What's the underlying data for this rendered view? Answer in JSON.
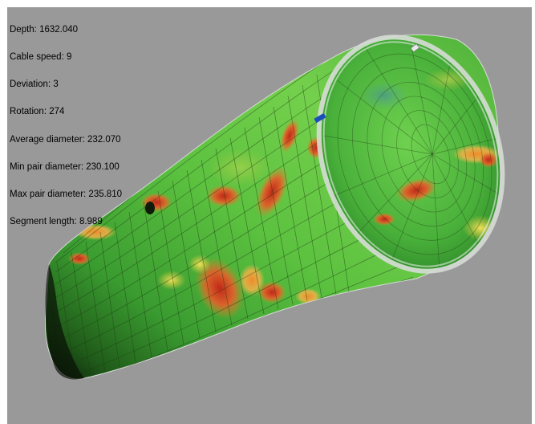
{
  "readout": {
    "depth": "Depth: 1632.040",
    "cable_speed": "Cable speed: 9",
    "deviation": "Deviation: 3",
    "rotation": "Rotation: 274",
    "average_diameter": "Average diameter: 232.070",
    "min_pair_diameter": "Min pair diameter: 230.100",
    "max_pair_diameter": "Max pair diameter: 235.810",
    "segment_length": "Segment length: 8.989"
  },
  "colors": {
    "background": "#999999",
    "pipe_base": "#3fae35",
    "pipe_highlight": "#8ddf5a",
    "defect_red": "#d2361f",
    "defect_orange": "#ef8a22",
    "defect_yellow": "#e8d040",
    "rim": "#d6dcd6"
  },
  "icons": [
    "pipe-3d-model-icon",
    "probe-marker-icon"
  ]
}
